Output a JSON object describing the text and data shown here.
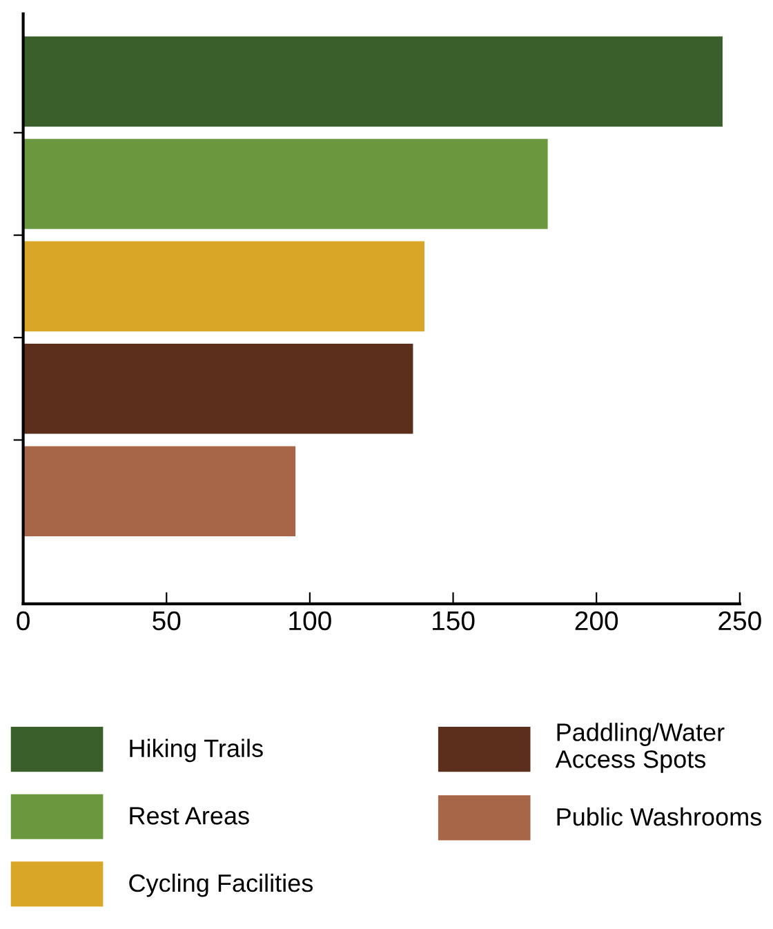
{
  "chart_data": {
    "type": "bar",
    "orientation": "horizontal",
    "categories": [
      null,
      null,
      null,
      null,
      null
    ],
    "series": [
      {
        "name": "Hiking Trails",
        "color": "#3a5f2b",
        "values": [
          244,
          null,
          null,
          null,
          null
        ]
      },
      {
        "name": "Rest Areas",
        "color": "#6b973e",
        "values": [
          null,
          183,
          null,
          null,
          null
        ]
      },
      {
        "name": "Cycling Facilities",
        "color": "#d9a628",
        "values": [
          null,
          null,
          140,
          null,
          null
        ]
      },
      {
        "name": "Paddling/Water\nAccess Spots",
        "color": "#5c2e1c",
        "values": [
          null,
          null,
          null,
          136,
          null
        ]
      },
      {
        "name": "Public Washrooms",
        "color": "#a86648",
        "values": [
          null,
          null,
          null,
          null,
          95
        ]
      }
    ],
    "xlim": [
      0,
      250
    ],
    "xticks": [
      0,
      50,
      100,
      150,
      200,
      250
    ],
    "grid": false,
    "legend": "bottom"
  }
}
